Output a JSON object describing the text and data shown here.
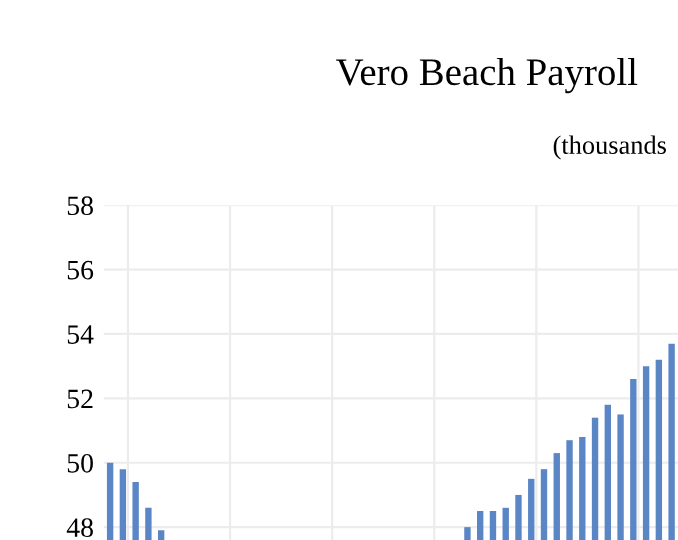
{
  "chart_data": {
    "type": "bar",
    "title": "Vero Beach Payroll",
    "subtitle": "(thousands",
    "categories": [
      null,
      null,
      null,
      null,
      null,
      null,
      null,
      null,
      null,
      null,
      null,
      null,
      null,
      null,
      null,
      null,
      null,
      null,
      null,
      null,
      null,
      null,
      null,
      null,
      null,
      null,
      null,
      null,
      null,
      null,
      null,
      null,
      null,
      null,
      null,
      null,
      null,
      null,
      null,
      null,
      null,
      null,
      null,
      null,
      null
    ],
    "values": [
      50.0,
      49.8,
      49.4,
      48.6,
      47.9,
      null,
      null,
      null,
      null,
      null,
      null,
      null,
      null,
      null,
      null,
      null,
      null,
      null,
      null,
      null,
      null,
      null,
      null,
      null,
      null,
      null,
      null,
      null,
      48.0,
      48.5,
      48.5,
      48.6,
      49.0,
      49.5,
      49.8,
      50.3,
      50.7,
      50.8,
      51.4,
      51.8,
      51.5,
      52.6,
      53.0,
      53.2,
      53.7
    ],
    "color": "#5b86c5",
    "ylim": [
      47.6,
      58
    ],
    "yticks": [
      48,
      50,
      52,
      54,
      56,
      58
    ],
    "grid": true
  }
}
